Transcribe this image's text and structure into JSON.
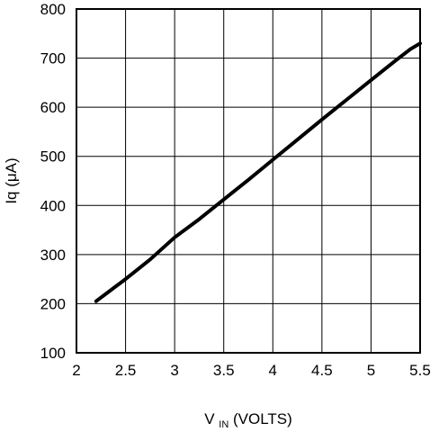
{
  "chart_data": {
    "type": "line",
    "title": "",
    "xlabel_main": "V",
    "xlabel_sub": "IN",
    "xlabel_rest": " (VOLTS)",
    "ylabel": "Iq (μA)",
    "xlim": [
      2,
      5.5
    ],
    "ylim": [
      100,
      800
    ],
    "x_ticks": [
      "2",
      "2.5",
      "3",
      "3.5",
      "4",
      "4.5",
      "5",
      "5.5"
    ],
    "y_ticks": [
      "100",
      "200",
      "300",
      "400",
      "500",
      "600",
      "700",
      "800"
    ],
    "grid": true,
    "series": [
      {
        "color": "#000000",
        "x": [
          2.2,
          2.3,
          2.5,
          2.75,
          3.0,
          3.25,
          3.5,
          3.75,
          4.0,
          4.25,
          4.5,
          4.75,
          5.0,
          5.25,
          5.4,
          5.5
        ],
        "y": [
          205,
          220,
          250,
          290,
          335,
          372,
          412,
          452,
          493,
          534,
          575,
          615,
          655,
          695,
          718,
          730
        ]
      }
    ]
  }
}
